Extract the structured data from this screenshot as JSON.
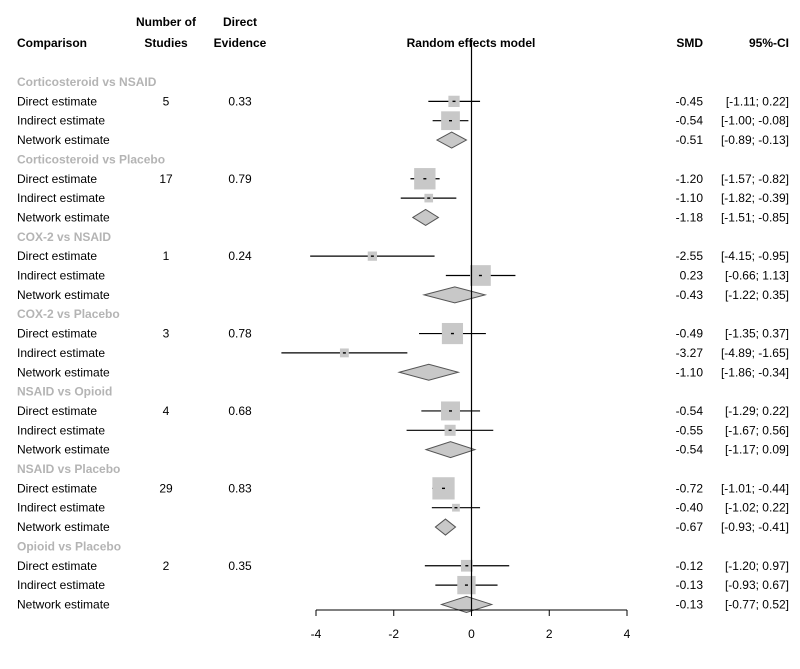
{
  "chart_data": {
    "type": "forest",
    "headers": {
      "comparison": "Comparison",
      "studies": [
        "Number of",
        "Studies"
      ],
      "direct_evidence": [
        "Direct",
        "Evidence"
      ],
      "model": "Random effects model",
      "smd": "SMD",
      "ci": "95%-CI"
    },
    "xlim": [
      -4,
      4
    ],
    "x_ticks": [
      -4,
      -2,
      0,
      2,
      4
    ],
    "groups": [
      {
        "name": "Corticosteroid vs NSAID",
        "studies": "5",
        "direct_evidence": "0.33",
        "rows": [
          {
            "label": "Direct estimate",
            "est": -0.45,
            "lo": -1.11,
            "hi": 0.22,
            "smd": "-0.45",
            "ci": "[-1.11; 0.22]",
            "kind": "square",
            "weight": 0.33
          },
          {
            "label": "Indirect estimate",
            "est": -0.54,
            "lo": -1.0,
            "hi": -0.08,
            "smd": "-0.54",
            "ci": "[-1.00; -0.08]",
            "kind": "square",
            "weight": 0.67
          },
          {
            "label": "Network estimate",
            "est": -0.51,
            "lo": -0.89,
            "hi": -0.13,
            "smd": "-0.51",
            "ci": "[-0.89; -0.13]",
            "kind": "diamond"
          }
        ]
      },
      {
        "name": "Corticosteroid vs Placebo",
        "studies": "17",
        "direct_evidence": "0.79",
        "rows": [
          {
            "label": "Direct estimate",
            "est": -1.2,
            "lo": -1.57,
            "hi": -0.82,
            "smd": "-1.20",
            "ci": "[-1.57; -0.82]",
            "kind": "square",
            "weight": 0.79
          },
          {
            "label": "Indirect estimate",
            "est": -1.1,
            "lo": -1.82,
            "hi": -0.39,
            "smd": "-1.10",
            "ci": "[-1.82; -0.39]",
            "kind": "square",
            "weight": 0.21
          },
          {
            "label": "Network estimate",
            "est": -1.18,
            "lo": -1.51,
            "hi": -0.85,
            "smd": "-1.18",
            "ci": "[-1.51; -0.85]",
            "kind": "diamond"
          }
        ]
      },
      {
        "name": "COX-2 vs NSAID",
        "studies": "1",
        "direct_evidence": "0.24",
        "rows": [
          {
            "label": "Direct estimate",
            "est": -2.55,
            "lo": -4.15,
            "hi": -0.95,
            "smd": "-2.55",
            "ci": "[-4.15; -0.95]",
            "kind": "square",
            "weight": 0.24
          },
          {
            "label": "Indirect estimate",
            "est": 0.23,
            "lo": -0.66,
            "hi": 1.13,
            "smd": "0.23",
            "ci": "[-0.66; 1.13]",
            "kind": "square",
            "weight": 0.76
          },
          {
            "label": "Network estimate",
            "est": -0.43,
            "lo": -1.22,
            "hi": 0.35,
            "smd": "-0.43",
            "ci": "[-1.22; 0.35]",
            "kind": "diamond"
          }
        ]
      },
      {
        "name": "COX-2 vs Placebo",
        "studies": "3",
        "direct_evidence": "0.78",
        "rows": [
          {
            "label": "Direct estimate",
            "est": -0.49,
            "lo": -1.35,
            "hi": 0.37,
            "smd": "-0.49",
            "ci": "[-1.35; 0.37]",
            "kind": "square",
            "weight": 0.78
          },
          {
            "label": "Indirect estimate",
            "est": -3.27,
            "lo": -4.89,
            "hi": -1.65,
            "smd": "-3.27",
            "ci": "[-4.89; -1.65]",
            "kind": "square",
            "weight": 0.22
          },
          {
            "label": "Network estimate",
            "est": -1.1,
            "lo": -1.86,
            "hi": -0.34,
            "smd": "-1.10",
            "ci": "[-1.86; -0.34]",
            "kind": "diamond"
          }
        ]
      },
      {
        "name": "NSAID vs Opioid",
        "studies": "4",
        "direct_evidence": "0.68",
        "rows": [
          {
            "label": "Direct estimate",
            "est": -0.54,
            "lo": -1.29,
            "hi": 0.22,
            "smd": "-0.54",
            "ci": "[-1.29; 0.22]",
            "kind": "square",
            "weight": 0.68
          },
          {
            "label": "Indirect estimate",
            "est": -0.55,
            "lo": -1.67,
            "hi": 0.56,
            "smd": "-0.55",
            "ci": "[-1.67; 0.56]",
            "kind": "square",
            "weight": 0.32
          },
          {
            "label": "Network estimate",
            "est": -0.54,
            "lo": -1.17,
            "hi": 0.09,
            "smd": "-0.54",
            "ci": "[-1.17; 0.09]",
            "kind": "diamond"
          }
        ]
      },
      {
        "name": "NSAID vs Placebo",
        "studies": "29",
        "direct_evidence": "0.83",
        "rows": [
          {
            "label": "Direct estimate",
            "est": -0.72,
            "lo": -1.01,
            "hi": -0.44,
            "smd": "-0.72",
            "ci": "[-1.01; -0.44]",
            "kind": "square",
            "weight": 0.83
          },
          {
            "label": "Indirect estimate",
            "est": -0.4,
            "lo": -1.02,
            "hi": 0.22,
            "smd": "-0.40",
            "ci": "[-1.02; 0.22]",
            "kind": "square",
            "weight": 0.17
          },
          {
            "label": "Network estimate",
            "est": -0.67,
            "lo": -0.93,
            "hi": -0.41,
            "smd": "-0.67",
            "ci": "[-0.93; -0.41]",
            "kind": "diamond"
          }
        ]
      },
      {
        "name": "Opioid vs Placebo",
        "studies": "2",
        "direct_evidence": "0.35",
        "rows": [
          {
            "label": "Direct estimate",
            "est": -0.12,
            "lo": -1.2,
            "hi": 0.97,
            "smd": "-0.12",
            "ci": "[-1.20; 0.97]",
            "kind": "square",
            "weight": 0.35
          },
          {
            "label": "Indirect estimate",
            "est": -0.13,
            "lo": -0.93,
            "hi": 0.67,
            "smd": "-0.13",
            "ci": "[-0.93; 0.67]",
            "kind": "square",
            "weight": 0.65
          },
          {
            "label": "Network estimate",
            "est": -0.13,
            "lo": -0.77,
            "hi": 0.52,
            "smd": "-0.13",
            "ci": "[-0.77; 0.52]",
            "kind": "diamond"
          }
        ]
      }
    ],
    "colors": {
      "group_label": "#b4b4b4",
      "square": "#c8c8c8",
      "diamond": "#c8c8c8",
      "line": "#000000"
    }
  }
}
